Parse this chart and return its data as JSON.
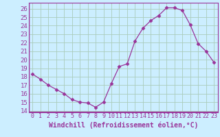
{
  "x": [
    0,
    1,
    2,
    3,
    4,
    5,
    6,
    7,
    8,
    9,
    10,
    11,
    12,
    13,
    14,
    15,
    16,
    17,
    18,
    19,
    20,
    21,
    22,
    23
  ],
  "y": [
    18.3,
    17.7,
    17.0,
    16.5,
    16.0,
    15.3,
    15.0,
    14.9,
    14.4,
    15.0,
    17.2,
    19.2,
    19.5,
    22.2,
    23.7,
    24.6,
    25.2,
    26.1,
    26.1,
    25.8,
    24.1,
    21.9,
    21.0,
    19.7
  ],
  "xlabel": "Windchill (Refroidissement éolien,°C)",
  "xlim": [
    -0.5,
    23.5
  ],
  "ylim": [
    13.8,
    26.7
  ],
  "yticks": [
    14,
    15,
    16,
    17,
    18,
    19,
    20,
    21,
    22,
    23,
    24,
    25,
    26
  ],
  "xticks": [
    0,
    1,
    2,
    3,
    4,
    5,
    6,
    7,
    8,
    9,
    10,
    11,
    12,
    13,
    14,
    15,
    16,
    17,
    18,
    19,
    20,
    21,
    22,
    23
  ],
  "line_color": "#993399",
  "marker": "D",
  "marker_size": 2.5,
  "bg_color": "#cceeff",
  "grid_color": "#aaccbb",
  "tick_color": "#993399",
  "axis_spine_color": "#993399",
  "xlabel_color": "#993399",
  "xlabel_fontsize": 7,
  "ytick_fontsize": 6.5,
  "xtick_fontsize": 6
}
